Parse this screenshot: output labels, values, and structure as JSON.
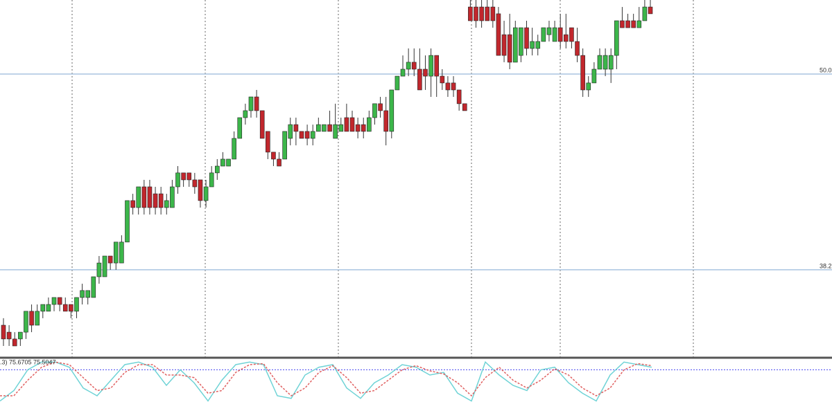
{
  "chart_data": [
    {
      "type": "candlestick",
      "ylim": [
        32.9,
        54.46
      ],
      "up_color": "#3cb64a",
      "down_color": "#c1272d",
      "levels": [
        {
          "value": 50,
          "label": "50.0"
        },
        {
          "value": 38.2,
          "label": "38.2"
        }
      ],
      "level_color": "#a9c4e0",
      "ohlc": [
        [
          34.86,
          35.28,
          33.61,
          34.03
        ],
        [
          34.44,
          34.86,
          33.61,
          34.03
        ],
        [
          34.03,
          34.44,
          33.61,
          33.61
        ],
        [
          34.03,
          34.44,
          33.61,
          34.44
        ],
        [
          34.44,
          35.7,
          34.03,
          35.7
        ],
        [
          35.7,
          36.11,
          34.44,
          34.86
        ],
        [
          34.86,
          36.11,
          34.86,
          35.7
        ],
        [
          35.7,
          36.11,
          35.28,
          36.11
        ],
        [
          35.7,
          36.53,
          35.7,
          36.11
        ],
        [
          36.11,
          36.53,
          35.7,
          36.53
        ],
        [
          36.53,
          36.53,
          35.7,
          36.11
        ],
        [
          36.11,
          36.53,
          35.7,
          35.7
        ],
        [
          36.11,
          36.11,
          35.28,
          35.7
        ],
        [
          35.7,
          36.53,
          35.28,
          36.53
        ],
        [
          36.53,
          37.36,
          36.11,
          36.95
        ],
        [
          36.53,
          36.95,
          36.11,
          36.95
        ],
        [
          36.53,
          37.78,
          36.53,
          37.78
        ],
        [
          37.78,
          39.03,
          37.36,
          38.61
        ],
        [
          37.78,
          39.03,
          37.78,
          39.03
        ],
        [
          39.03,
          39.03,
          38.2,
          38.61
        ],
        [
          38.61,
          39.87,
          38.2,
          39.87
        ],
        [
          38.61,
          40.28,
          38.61,
          39.87
        ],
        [
          39.87,
          42.37,
          39.87,
          42.37
        ],
        [
          42.37,
          42.78,
          41.53,
          41.95
        ],
        [
          41.95,
          43.2,
          41.53,
          43.2
        ],
        [
          43.2,
          43.62,
          41.53,
          41.95
        ],
        [
          43.2,
          43.62,
          41.53,
          41.95
        ],
        [
          42.78,
          43.2,
          41.53,
          41.95
        ],
        [
          42.78,
          43.2,
          41.53,
          41.95
        ],
        [
          41.95,
          42.78,
          41.53,
          42.37
        ],
        [
          41.95,
          43.62,
          41.95,
          43.2
        ],
        [
          43.2,
          44.45,
          42.78,
          44.04
        ],
        [
          44.04,
          44.04,
          43.2,
          43.62
        ],
        [
          44.04,
          44.04,
          43.2,
          43.62
        ],
        [
          43.62,
          44.04,
          42.78,
          43.2
        ],
        [
          43.62,
          43.62,
          41.95,
          42.37
        ],
        [
          42.37,
          43.62,
          41.95,
          43.2
        ],
        [
          43.2,
          44.45,
          43.2,
          44.04
        ],
        [
          44.04,
          44.87,
          43.62,
          44.45
        ],
        [
          44.45,
          45.29,
          44.45,
          44.87
        ],
        [
          44.45,
          44.87,
          44.45,
          44.87
        ],
        [
          44.87,
          46.54,
          44.87,
          46.12
        ],
        [
          46.12,
          47.37,
          46.12,
          47.37
        ],
        [
          47.37,
          48.21,
          46.95,
          47.79
        ],
        [
          47.79,
          48.62,
          47.37,
          48.62
        ],
        [
          48.62,
          49.04,
          47.37,
          47.79
        ],
        [
          47.79,
          47.79,
          46.12,
          46.12
        ],
        [
          46.54,
          46.54,
          44.87,
          45.29
        ],
        [
          45.29,
          45.29,
          44.45,
          44.87
        ],
        [
          44.87,
          45.29,
          44.45,
          44.45
        ],
        [
          44.87,
          46.54,
          44.87,
          46.54
        ],
        [
          46.12,
          47.37,
          45.7,
          46.95
        ],
        [
          46.95,
          47.37,
          45.7,
          46.54
        ],
        [
          46.54,
          46.54,
          46.12,
          46.12
        ],
        [
          46.54,
          46.95,
          45.7,
          46.12
        ],
        [
          46.12,
          46.95,
          45.7,
          46.54
        ],
        [
          46.54,
          47.37,
          46.54,
          46.95
        ],
        [
          46.54,
          46.95,
          46.54,
          46.95
        ],
        [
          46.95,
          47.79,
          46.54,
          46.54
        ],
        [
          46.12,
          48.21,
          46.12,
          46.95
        ],
        [
          46.54,
          47.37,
          46.54,
          46.95
        ],
        [
          47.37,
          48.21,
          46.54,
          46.54
        ],
        [
          47.37,
          47.79,
          46.54,
          46.54
        ],
        [
          46.95,
          47.37,
          46.12,
          46.54
        ],
        [
          46.95,
          47.37,
          46.12,
          46.54
        ],
        [
          46.54,
          47.79,
          46.54,
          47.37
        ],
        [
          47.37,
          48.21,
          46.95,
          48.21
        ],
        [
          48.21,
          48.62,
          47.37,
          47.79
        ],
        [
          47.79,
          48.62,
          45.7,
          46.54
        ],
        [
          46.54,
          49.04,
          46.12,
          49.04
        ],
        [
          49.04,
          49.87,
          49.04,
          49.87
        ],
        [
          49.87,
          51.12,
          49.87,
          50.29
        ],
        [
          50.29,
          51.54,
          49.87,
          50.71
        ],
        [
          50.71,
          51.54,
          49.87,
          50.29
        ],
        [
          50.29,
          51.54,
          49.04,
          49.04
        ],
        [
          50.29,
          51.12,
          49.04,
          49.87
        ],
        [
          49.87,
          51.54,
          48.62,
          51.12
        ],
        [
          51.12,
          51.12,
          48.62,
          49.87
        ],
        [
          49.87,
          50.29,
          49.04,
          49.46
        ],
        [
          49.46,
          49.87,
          48.62,
          49.04
        ],
        [
          49.46,
          49.87,
          48.62,
          49.04
        ],
        [
          49.04,
          49.04,
          47.79,
          48.21
        ],
        [
          48.21,
          48.21,
          47.79,
          47.79
        ],
        [
          54.04,
          54.46,
          53.21,
          53.21
        ],
        [
          54.04,
          54.46,
          52.79,
          53.21
        ],
        [
          54.04,
          54.46,
          52.79,
          53.21
        ],
        [
          54.04,
          54.46,
          53.21,
          53.21
        ],
        [
          54.04,
          54.46,
          52.79,
          53.21
        ],
        [
          53.63,
          54.04,
          51.12,
          51.12
        ],
        [
          52.37,
          53.21,
          50.71,
          51.12
        ],
        [
          52.37,
          53.63,
          50.29,
          50.71
        ],
        [
          50.71,
          53.21,
          50.71,
          52.79
        ],
        [
          51.12,
          52.79,
          50.71,
          52.79
        ],
        [
          52.79,
          53.21,
          51.12,
          51.54
        ],
        [
          51.54,
          52.79,
          51.12,
          51.96
        ],
        [
          51.54,
          52.37,
          51.12,
          51.96
        ],
        [
          51.96,
          52.79,
          51.96,
          52.79
        ],
        [
          52.37,
          53.21,
          51.96,
          52.79
        ],
        [
          51.96,
          53.21,
          51.96,
          52.79
        ],
        [
          52.79,
          53.63,
          51.54,
          51.96
        ],
        [
          52.37,
          53.63,
          51.54,
          51.96
        ],
        [
          52.79,
          52.79,
          51.54,
          51.96
        ],
        [
          51.96,
          52.79,
          50.71,
          51.12
        ],
        [
          51.12,
          51.54,
          48.62,
          49.04
        ],
        [
          49.04,
          49.87,
          48.62,
          49.46
        ],
        [
          49.46,
          50.71,
          49.46,
          50.29
        ],
        [
          50.29,
          51.54,
          50.29,
          51.12
        ],
        [
          50.29,
          51.54,
          49.87,
          51.12
        ],
        [
          50.29,
          51.54,
          49.46,
          51.12
        ],
        [
          51.12,
          53.21,
          50.29,
          53.21
        ],
        [
          53.21,
          54.04,
          52.79,
          52.79
        ],
        [
          53.21,
          53.63,
          52.79,
          52.79
        ],
        [
          53.21,
          53.63,
          52.79,
          52.79
        ],
        [
          52.79,
          54.04,
          52.79,
          53.21
        ],
        [
          53.21,
          54.46,
          53.21,
          54.04
        ],
        [
          54.04,
          54.46,
          53.63,
          53.63
        ]
      ]
    },
    {
      "type": "line",
      "label": ".3) 75.6705 75.5047",
      "ylim": [
        18,
        102
      ],
      "levels": [
        80
      ],
      "level_color": "#4b4bf0",
      "series": [
        {
          "color": "#6fd3d6",
          "values": [
            20,
            40,
            80,
            95,
            95,
            85,
            45,
            30,
            60,
            90,
            95,
            85,
            50,
            80,
            55,
            20,
            60,
            90,
            95,
            90,
            30,
            25,
            70,
            85,
            90,
            45,
            25,
            55,
            70,
            90,
            85,
            70,
            75,
            35,
            20,
            95,
            70,
            50,
            40,
            80,
            85,
            55,
            35,
            20,
            70,
            95,
            90,
            85
          ]
        },
        {
          "color": "#e06060",
          "dashed": true,
          "values": [
            30,
            30,
            60,
            85,
            95,
            90,
            65,
            40,
            45,
            75,
            90,
            90,
            70,
            70,
            65,
            35,
            40,
            75,
            90,
            92,
            55,
            30,
            45,
            75,
            88,
            65,
            35,
            40,
            60,
            80,
            88,
            78,
            72,
            55,
            30,
            65,
            85,
            60,
            45,
            60,
            82,
            70,
            45,
            30,
            45,
            80,
            92,
            88
          ]
        }
      ]
    }
  ]
}
